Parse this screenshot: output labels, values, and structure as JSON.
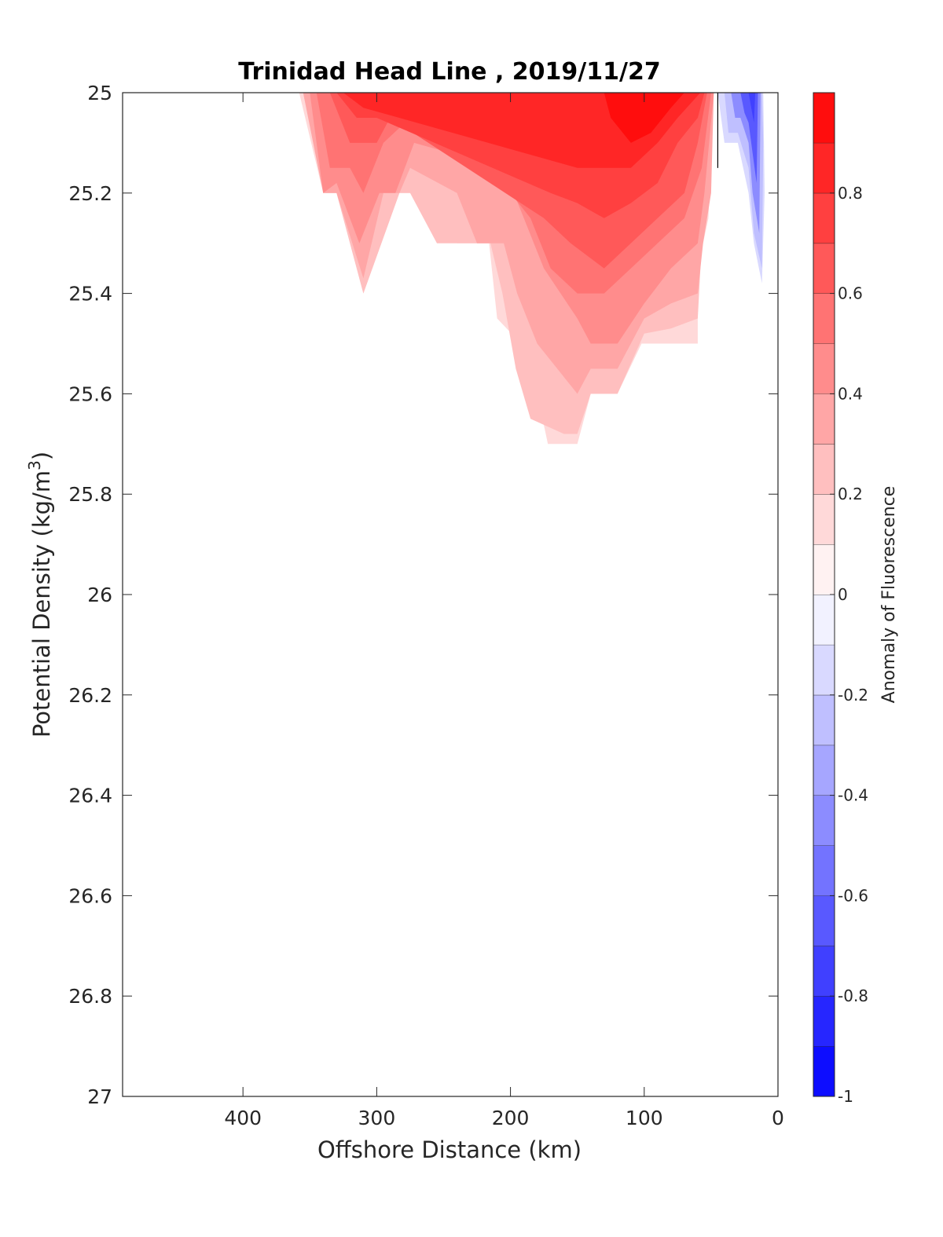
{
  "chart_data": {
    "type": "contour",
    "title": "Trinidad Head Line , 2019/11/27",
    "xlabel": "Offshore Distance (km)",
    "ylabel_main": "Potential Density (kg/m",
    "ylabel_sup": "3",
    "ylabel_end": ")",
    "x_axis_reversed": true,
    "xlim": [
      0,
      490
    ],
    "ylim": [
      25,
      27
    ],
    "y_axis_inverted": true,
    "xticks": [
      400,
      300,
      200,
      100,
      0
    ],
    "xtick_labels": [
      "400",
      "300",
      "200",
      "100",
      "0"
    ],
    "yticks": [
      25,
      25.2,
      25.4,
      25.6,
      25.8,
      26,
      26.2,
      26.4,
      26.6,
      26.8,
      27
    ],
    "ytick_labels": [
      "25",
      "25.2",
      "25.4",
      "25.6",
      "25.8",
      "26",
      "26.2",
      "26.4",
      "26.6",
      "26.8",
      "27"
    ],
    "colorbar": {
      "label": "Anomaly of Fluorescence",
      "range": [
        -1,
        1
      ],
      "level_step": 0.1,
      "ticks": [
        0.8,
        0.6,
        0.4,
        0.2,
        0,
        -0.2,
        -0.4,
        -0.6,
        -0.8,
        -1
      ],
      "tick_labels": [
        "0.8",
        "0.6",
        "0.4",
        "0.2",
        "0",
        "-0.2",
        "-0.4",
        "-0.6",
        "-0.8",
        "-1"
      ],
      "low_color": "#0000ff",
      "mid_color": "#ffffff",
      "high_color": "#ff0000"
    },
    "contour_regions": [
      {
        "level": 0.1,
        "points": [
          [
            358,
            25
          ],
          [
            340,
            25.2
          ],
          [
            330,
            25.2
          ],
          [
            310,
            25.4
          ],
          [
            283,
            25.2
          ],
          [
            275,
            25.2
          ],
          [
            265,
            25.1
          ],
          [
            255,
            25.1
          ],
          [
            240,
            25.3
          ],
          [
            216,
            25.3
          ],
          [
            210,
            25.45
          ],
          [
            192,
            25.5
          ],
          [
            180,
            25.6
          ],
          [
            172,
            25.7
          ],
          [
            150,
            25.7
          ],
          [
            140,
            25.6
          ],
          [
            120,
            25.6
          ],
          [
            102,
            25.5
          ],
          [
            94,
            25.5
          ],
          [
            80,
            25.5
          ],
          [
            60,
            25.5
          ],
          [
            60,
            25.35
          ],
          [
            52,
            25.25
          ],
          [
            48,
            25
          ],
          [
            200,
            25
          ],
          [
            210,
            25.1
          ],
          [
            190,
            25.1
          ],
          [
            175,
            25.2
          ],
          [
            165,
            25.2
          ],
          [
            150,
            25.1
          ],
          [
            140,
            25.1
          ],
          [
            130,
            25
          ]
        ]
      },
      {
        "level": 0.2,
        "points": [
          [
            355,
            25
          ],
          [
            340,
            25.2
          ],
          [
            330,
            25.2
          ],
          [
            310,
            25.4
          ],
          [
            283,
            25.2
          ],
          [
            275,
            25.2
          ],
          [
            255,
            25.3
          ],
          [
            240,
            25.3
          ],
          [
            215,
            25.3
          ],
          [
            206,
            25.4
          ],
          [
            196,
            25.55
          ],
          [
            185,
            25.65
          ],
          [
            160,
            25.68
          ],
          [
            150,
            25.68
          ],
          [
            140,
            25.6
          ],
          [
            120,
            25.6
          ],
          [
            100,
            25.48
          ],
          [
            80,
            25.47
          ],
          [
            60,
            25.45
          ],
          [
            57,
            25.3
          ],
          [
            51,
            25.2
          ],
          [
            49,
            25
          ]
        ]
      },
      {
        "level": 0.3,
        "points": [
          [
            355,
            25
          ],
          [
            340,
            25.2
          ],
          [
            330,
            25.2
          ],
          [
            310,
            25.37
          ],
          [
            295,
            25.2
          ],
          [
            283,
            25.2
          ],
          [
            275,
            25.15
          ],
          [
            240,
            25.2
          ],
          [
            225,
            25.3
          ],
          [
            205,
            25.3
          ],
          [
            195,
            25.4
          ],
          [
            180,
            25.5
          ],
          [
            150,
            25.6
          ],
          [
            140,
            25.55
          ],
          [
            120,
            25.55
          ],
          [
            100,
            25.45
          ],
          [
            80,
            25.42
          ],
          [
            60,
            25.4
          ],
          [
            56,
            25.3
          ],
          [
            50,
            25.2
          ],
          [
            48,
            25
          ]
        ]
      },
      {
        "level": 0.4,
        "points": [
          [
            350,
            25
          ],
          [
            340,
            25.2
          ],
          [
            330,
            25.18
          ],
          [
            313,
            25.3
          ],
          [
            298,
            25.2
          ],
          [
            286,
            25.2
          ],
          [
            272,
            25.1
          ],
          [
            205,
            25.15
          ],
          [
            190,
            25.25
          ],
          [
            175,
            25.35
          ],
          [
            150,
            25.45
          ],
          [
            140,
            25.5
          ],
          [
            120,
            25.5
          ],
          [
            100,
            25.42
          ],
          [
            80,
            25.35
          ],
          [
            60,
            25.3
          ],
          [
            55,
            25.2
          ],
          [
            48,
            25
          ]
        ]
      },
      {
        "level": 0.5,
        "points": [
          [
            345,
            25
          ],
          [
            335,
            25.15
          ],
          [
            320,
            25.15
          ],
          [
            310,
            25.2
          ],
          [
            295,
            25.1
          ],
          [
            275,
            25.05
          ],
          [
            200,
            25.2
          ],
          [
            185,
            25.25
          ],
          [
            170,
            25.35
          ],
          [
            150,
            25.4
          ],
          [
            130,
            25.4
          ],
          [
            110,
            25.35
          ],
          [
            90,
            25.3
          ],
          [
            70,
            25.25
          ],
          [
            57,
            25.15
          ],
          [
            50,
            25
          ]
        ]
      },
      {
        "level": 0.6,
        "points": [
          [
            335,
            25
          ],
          [
            320,
            25.1
          ],
          [
            300,
            25.1
          ],
          [
            290,
            25.05
          ],
          [
            175,
            25.25
          ],
          [
            155,
            25.3
          ],
          [
            130,
            25.35
          ],
          [
            110,
            25.3
          ],
          [
            90,
            25.25
          ],
          [
            70,
            25.2
          ],
          [
            60,
            25.1
          ],
          [
            53,
            25
          ]
        ]
      },
      {
        "level": 0.7,
        "points": [
          [
            330,
            25
          ],
          [
            315,
            25.05
          ],
          [
            300,
            25.05
          ],
          [
            170,
            25.2
          ],
          [
            150,
            25.22
          ],
          [
            130,
            25.25
          ],
          [
            110,
            25.22
          ],
          [
            90,
            25.18
          ],
          [
            75,
            25.1
          ],
          [
            60,
            25.05
          ],
          [
            55,
            25
          ]
        ]
      },
      {
        "level": 0.8,
        "points": [
          [
            325,
            25
          ],
          [
            310,
            25.03
          ],
          [
            150,
            25.15
          ],
          [
            130,
            25.15
          ],
          [
            110,
            25.15
          ],
          [
            90,
            25.1
          ],
          [
            75,
            25.05
          ],
          [
            58,
            25
          ]
        ]
      },
      {
        "level": 0.9,
        "points": [
          [
            130,
            25
          ],
          [
            125,
            25.05
          ],
          [
            110,
            25.1
          ],
          [
            95,
            25.08
          ],
          [
            80,
            25.03
          ],
          [
            70,
            25
          ]
        ]
      },
      {
        "level": -0.1,
        "points": [
          [
            45,
            25
          ],
          [
            40,
            25.1
          ],
          [
            30,
            25.1
          ],
          [
            22,
            25.2
          ],
          [
            18,
            25.3
          ],
          [
            12,
            25.38
          ],
          [
            10,
            25.2
          ],
          [
            11,
            25
          ]
        ]
      },
      {
        "level": -0.2,
        "points": [
          [
            40,
            25
          ],
          [
            37,
            25.08
          ],
          [
            30,
            25.08
          ],
          [
            22,
            25.15
          ],
          [
            18,
            25.28
          ],
          [
            12,
            25.35
          ],
          [
            11,
            25.1
          ],
          [
            12,
            25
          ]
        ]
      },
      {
        "level": -0.4,
        "points": [
          [
            35,
            25
          ],
          [
            32,
            25.05
          ],
          [
            28,
            25.05
          ],
          [
            22,
            25.1
          ],
          [
            19,
            25.2
          ],
          [
            14,
            25.28
          ],
          [
            13,
            25
          ]
        ]
      },
      {
        "level": -0.6,
        "points": [
          [
            28,
            25
          ],
          [
            25,
            25.04
          ],
          [
            22,
            25.06
          ],
          [
            19,
            25.12
          ],
          [
            16,
            25.18
          ],
          [
            15,
            25
          ]
        ]
      },
      {
        "level": -0.7,
        "points": [
          [
            22,
            25
          ],
          [
            20,
            25.03
          ],
          [
            18,
            25.06
          ],
          [
            17,
            25
          ]
        ]
      }
    ],
    "zero_contour_line": [
      [
        45,
        25
      ],
      [
        45,
        25.15
      ]
    ]
  }
}
